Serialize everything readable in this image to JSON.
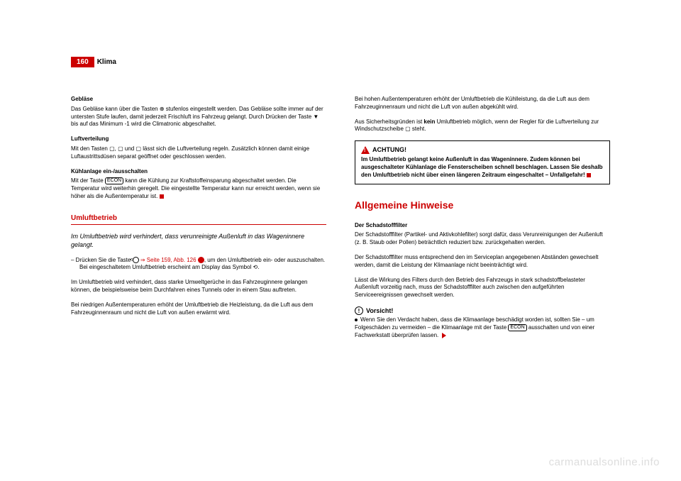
{
  "header": {
    "page_number": "160",
    "title": "Klima"
  },
  "left_col": {
    "s1_title": "Gebläse",
    "s1_body": "Das Gebläse kann über die Tasten ⊕ stufenlos eingestellt werden. Das Gebläse sollte immer auf der untersten Stufe laufen, damit jederzeit Frischluft ins Fahrzeug gelangt. Durch Drücken der Taste ▼ bis auf das Minimum -1 wird die Climatronic abgeschaltet.",
    "s2_title": "Luftverteilung",
    "s2_body": "Mit den Tasten ▢, ▢ und ▢ lässt sich die Luftverteilung regeln. Zusätzlich können damit einige Luftaustrittsdüsen separat geöffnet oder geschlossen werden.",
    "s3_title": "Kühlanlage ein-/ausschalten",
    "s3_body": "Mit der Taste ECON kann die Kühlung zur Kraftstoffeinsparung abgeschaltet werden. Die Temperatur wird weiterhin geregelt. Die eingestellte Temperatur kann nur erreicht werden, wenn sie höher als die Außentemperatur ist.",
    "umluft_heading": "Umluftbetrieb",
    "umluft_lead": "Im Umluftbetrieb wird verhindert, dass verunreinigte Außenluft in das Wageninnere gelangt.",
    "instr_pre": "–   Drücken Sie die Taste ",
    "instr_link": "⇒ Seite 159, Abb. 126",
    "instr_post": ", um den Umluftbetrieb ein- oder auszuschalten. Bei eingeschaltetem Umluftbetrieb erscheint am Display das Symbol ⟲.",
    "p4": "Im Umluftbetrieb wird verhindert, dass starke Umweltgerüche in das Fahrzeuginnere gelangen können, die beispielsweise beim Durchfahren eines Tunnels oder in einem Stau auftreten.",
    "p5": "Bei niedrigen Außentemperaturen erhöht der Umluftbetrieb die Heizleistung, da die Luft aus dem Fahrzeuginnenraum und nicht die Luft von außen erwärmt wird."
  },
  "right_col": {
    "p1": "Bei hohen Außentemperaturen erhöht der Umluftbetrieb die Kühlleistung, da die Luft aus dem Fahrzeuginnenraum und nicht die Luft von außen abgekühlt wird.",
    "p2_pre": "Aus Sicherheitsgründen ist ",
    "p2_bold": "kein",
    "p2_post": " Umluftbetrieb möglich, wenn der Regler für die Luftverteilung zur Windschutzscheibe ▢ steht.",
    "warn_title": "ACHTUNG!",
    "warn_body": "Im Umluftbetrieb gelangt keine Außenluft in das Wageninnere. Zudem können bei ausgeschalteter Kühlanlage die Fensterscheiben schnell beschlagen. Lassen Sie deshalb den Umluftbetrieb nicht über einen längeren Zeitraum eingeschaltet – Unfallgefahr!",
    "allg_heading": "Allgemeine Hinweise",
    "filter_title": "Der Schadstofffilter",
    "filter_p1": "Der Schadstofffilter (Partikel- und Aktivkohlefilter) sorgt dafür, dass Verunreinigungen der Außenluft (z. B. Staub oder Pollen) beträchtlich reduziert bzw. zurückgehalten werden.",
    "filter_p2": "Der Schadstofffilter muss entsprechend den im Serviceplan angegebenen Abständen gewechselt werden, damit die Leistung der Klimaanlage nicht beeinträchtigt wird.",
    "filter_p3": "Lässt die Wirkung des Filters durch den Betrieb des Fahrzeugs in stark schadstoffbelasteter Außenluft vorzeitig nach, muss der Schadstofffilter auch zwischen den aufgeführten Serviceereignissen gewechselt werden.",
    "caution_title": "Vorsicht!",
    "caution_body_pre": "Wenn Sie den Verdacht haben, dass die Klimaanlage beschädigt worden ist, sollten Sie – um Folgeschäden zu vermeiden – die Klimaanlage mit der Taste ",
    "caution_econ": "ECON",
    "caution_body_post": " ausschalten und von einer Fachwerkstatt überprüfen lassen."
  },
  "watermark": "carmanualsonline.info",
  "colors": {
    "accent": "#cc0000",
    "text": "#000000",
    "bg": "#ffffff",
    "watermark": "#dddddd"
  }
}
